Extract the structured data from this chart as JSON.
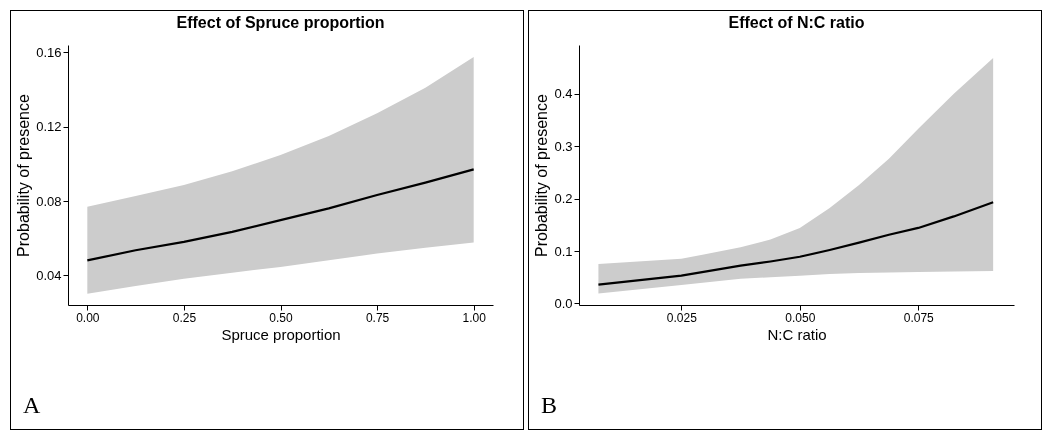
{
  "chart_data": [
    {
      "type": "line",
      "title": "Effect of Spruce proportion",
      "xlabel": "Spruce proportion",
      "ylabel": "Probability of presence",
      "annotations": [
        "A"
      ],
      "grid": false,
      "marker": "none",
      "line_style": "solid",
      "xlim": [
        -0.05,
        1.05
      ],
      "xticks": [
        {
          "value": 0,
          "label": "0.00"
        },
        0.25,
        {
          "value": 0.5,
          "label": "0.50"
        },
        0.75,
        {
          "value": 1,
          "label": "1.00"
        }
      ],
      "ylim": [
        0.024,
        0.164
      ],
      "yticks": [
        0.04,
        0.08,
        0.12,
        0.16
      ],
      "series": [
        {
          "color": "#000000",
          "x": [
            0,
            0.125,
            0.25,
            0.375,
            0.5,
            0.625,
            0.75,
            0.875,
            1
          ],
          "values": [
            0.048,
            0.0535,
            0.058,
            0.0634,
            0.0697,
            0.076,
            0.0832,
            0.0899,
            0.097
          ],
          "lower": [
            0.03,
            0.0342,
            0.0382,
            0.0414,
            0.0445,
            0.0481,
            0.0517,
            0.0548,
            0.0576
          ],
          "upper": [
            0.0769,
            0.0827,
            0.0886,
            0.096,
            0.1048,
            0.115,
            0.1273,
            0.141,
            0.1575
          ]
        }
      ]
    },
    {
      "type": "line",
      "title": "Effect of N:C ratio",
      "xlabel": "N:C ratio",
      "ylabel": "Probability of presence",
      "annotations": [
        "B"
      ],
      "grid": false,
      "marker": "none",
      "line_style": "solid",
      "xlim": [
        0.0034,
        0.0952
      ],
      "xticks": [
        0.025,
        {
          "value": 0.05,
          "label": "0.050"
        },
        0.075
      ],
      "ylim": [
        -0.003,
        0.493
      ],
      "yticks": [
        {
          "value": 0,
          "label": "0.0"
        },
        0.1,
        0.2,
        0.3,
        0.4
      ],
      "series": [
        {
          "color": "#000000",
          "x": [
            0.0075,
            0.025,
            0.0375,
            0.0438,
            0.05,
            0.0563,
            0.0625,
            0.0688,
            0.075,
            0.0825,
            0.0908
          ],
          "values": [
            0.036,
            0.053,
            0.072,
            0.08,
            0.089,
            0.102,
            0.116,
            0.131,
            0.144,
            0.166,
            0.193
          ],
          "lower": [
            0.019,
            0.035,
            0.047,
            0.05,
            0.053,
            0.056,
            0.058,
            0.059,
            0.06,
            0.061,
            0.062
          ],
          "upper": [
            0.075,
            0.085,
            0.107,
            0.122,
            0.144,
            0.182,
            0.226,
            0.276,
            0.333,
            0.4,
            0.468
          ]
        }
      ]
    }
  ]
}
